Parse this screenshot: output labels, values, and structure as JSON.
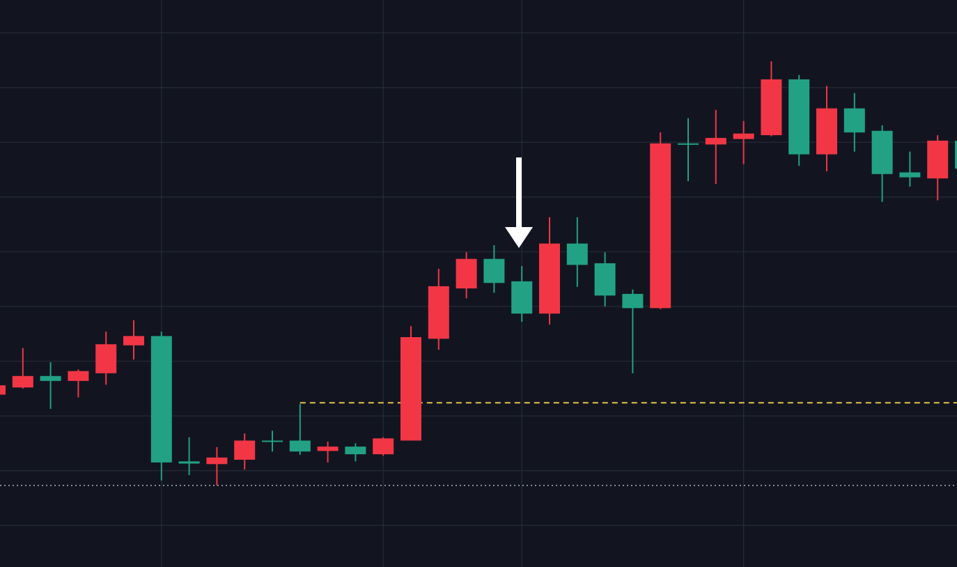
{
  "chart_data": {
    "type": "candlestick",
    "categories": [
      null,
      null,
      null,
      null,
      null,
      null,
      null,
      null,
      null,
      null,
      null,
      null,
      null,
      null,
      null,
      null,
      null,
      null,
      null,
      null,
      null,
      null,
      null,
      null,
      null,
      null,
      null,
      null,
      null,
      null,
      null,
      null,
      null,
      null,
      null,
      null
    ],
    "open": [
      33.9,
      35.2,
      37.3,
      36.4,
      37.8,
      42.9,
      44.6,
      21.7,
      21.2,
      22.0,
      25.5,
      25.5,
      23.6,
      24.4,
      23.0,
      25.5,
      44.1,
      53.3,
      58.7,
      54.6,
      48.7,
      61.5,
      57.9,
      52.3,
      49.7,
      79.8,
      79.6,
      80.6,
      81.3,
      91.5,
      77.8,
      86.2,
      82.1,
      74.5,
      73.4,
      80.3
    ],
    "high": [
      35.6,
      42.4,
      39.8,
      38.5,
      45.4,
      47.5,
      45.4,
      26.1,
      24.3,
      26.8,
      27.3,
      32.2,
      25.3,
      25.0,
      26.1,
      46.4,
      56.9,
      59.9,
      61.2,
      57.4,
      66.3,
      66.3,
      59.9,
      53.1,
      81.8,
      84.4,
      85.9,
      83.9,
      94.8,
      92.3,
      90.3,
      89.0,
      83.1,
      78.3,
      81.3,
      80.3
    ],
    "low": [
      33.9,
      35.0,
      31.3,
      33.4,
      35.7,
      40.3,
      18.2,
      19.2,
      17.3,
      20.2,
      23.5,
      22.9,
      21.5,
      21.7,
      22.7,
      25.5,
      42.1,
      51.5,
      52.5,
      47.2,
      46.7,
      53.6,
      50.0,
      37.8,
      49.5,
      72.9,
      72.4,
      76.0,
      81.1,
      75.7,
      74.7,
      78.3,
      69.1,
      71.9,
      69.4,
      75.2
    ],
    "close": [
      35.6,
      37.3,
      36.4,
      38.2,
      43.1,
      44.6,
      21.5,
      21.3,
      22.4,
      25.5,
      25.4,
      23.5,
      24.4,
      23.0,
      25.9,
      44.4,
      53.7,
      58.7,
      54.3,
      48.7,
      61.5,
      57.6,
      52.0,
      49.7,
      79.8,
      79.7,
      80.8,
      81.6,
      91.5,
      77.8,
      86.2,
      81.8,
      74.2,
      73.6,
      80.3,
      75.2
    ],
    "up_color": "#f23645",
    "down_color": "#22a185",
    "ylim": [
      2.4,
      106
    ],
    "yticks": [
      10,
      20,
      30,
      40,
      50,
      60,
      70,
      80,
      90,
      100
    ],
    "grid": true,
    "hlines": [
      {
        "value": 32.4,
        "color": "#e6c34a",
        "style": "dashed",
        "from": 11
      },
      {
        "value": 17.3,
        "color": "#aeb3bf",
        "style": "dotted"
      }
    ]
  }
}
